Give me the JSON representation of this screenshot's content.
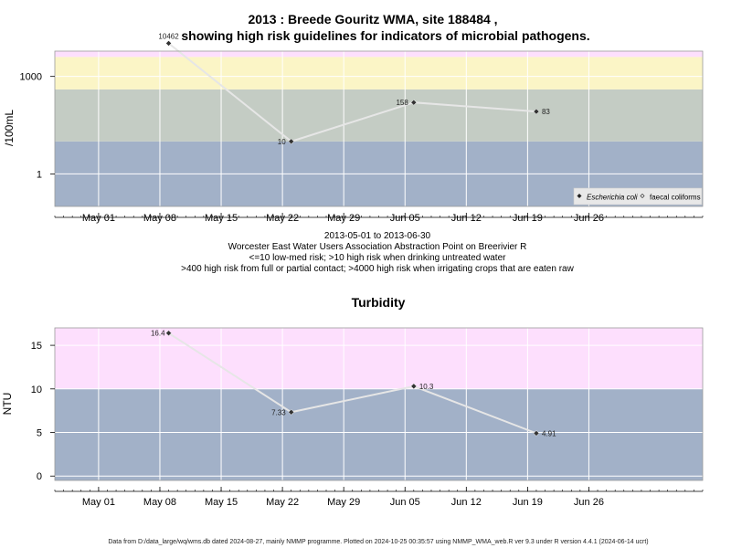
{
  "chart_data": [
    {
      "type": "line",
      "title_line1": "2013 : Breede Gouritz WMA, site 188484 ,",
      "title_line2": "showing high risk guidelines for indicators of microbial pathogens.",
      "ylabel": "/100mL",
      "yscale": "log",
      "ylim": [
        0.1,
        6000
      ],
      "y_ticks": [
        {
          "value": 1,
          "label": "1"
        },
        {
          "value": 1000,
          "label": "1000"
        }
      ],
      "caption": [
        "2013-05-01 to 2013-06-30",
        "Worcester East Water Users Association Abstraction Point on Breerivier R",
        "<=10 low-med risk; >10 high risk when drinking untreated water",
        ">400 high risk from full or partial contact; >4000 high risk when irrigating crops that are eaten raw"
      ],
      "bands": [
        {
          "from": 0.1,
          "to": 10,
          "color": "#a2b1c8"
        },
        {
          "from": 10,
          "to": 400,
          "color": "#c4ccc4"
        },
        {
          "from": 400,
          "to": 4000,
          "color": "#fbf5c6"
        },
        {
          "from": 4000,
          "to": 6000,
          "color": "#fddffd"
        }
      ],
      "series": [
        {
          "name": "Escherichia coli",
          "marker": "diamond-filled",
          "x": [
            "2013-05-09",
            "2013-05-23",
            "2013-06-06",
            "2013-06-20"
          ],
          "y": [
            10462,
            10,
            158,
            83
          ],
          "labels": [
            "10462",
            "10",
            "158",
            "83"
          ]
        }
      ],
      "legend": {
        "position": "bottom-right",
        "entries": [
          {
            "name": "Escherichia coli",
            "marker": "diamond-filled",
            "italic": true
          },
          {
            "name": "faecal coliforms",
            "marker": "diamond-open",
            "italic": false
          }
        ]
      }
    },
    {
      "type": "line",
      "title": "Turbidity",
      "ylabel": "NTU",
      "ylim": [
        -0.5,
        17
      ],
      "y_ticks": [
        {
          "value": 0,
          "label": "0"
        },
        {
          "value": 5,
          "label": "5"
        },
        {
          "value": 10,
          "label": "10"
        },
        {
          "value": 15,
          "label": "15"
        }
      ],
      "bands": [
        {
          "from": -0.5,
          "to": 10,
          "color": "#a2b1c8"
        },
        {
          "from": 10,
          "to": 17,
          "color": "#fddffd"
        }
      ],
      "series": [
        {
          "name": "Turbidity",
          "marker": "diamond-filled",
          "x": [
            "2013-05-09",
            "2013-05-23",
            "2013-06-06",
            "2013-06-20"
          ],
          "y": [
            16.4,
            7.33,
            10.3,
            4.91
          ],
          "labels": [
            "16.4",
            "7.33",
            "10.3",
            "4.91"
          ]
        }
      ]
    }
  ],
  "x_axis": {
    "xlim": [
      "2013-04-26",
      "2013-07-09"
    ],
    "ticks": [
      {
        "date": "2013-05-01",
        "label": "May 01"
      },
      {
        "date": "2013-05-08",
        "label": "May 08"
      },
      {
        "date": "2013-05-15",
        "label": "May 15"
      },
      {
        "date": "2013-05-22",
        "label": "May 22"
      },
      {
        "date": "2013-05-29",
        "label": "May 29"
      },
      {
        "date": "2013-06-05",
        "label": "Jun 05"
      },
      {
        "date": "2013-06-12",
        "label": "Jun 12"
      },
      {
        "date": "2013-06-19",
        "label": "Jun 19"
      },
      {
        "date": "2013-06-26",
        "label": "Jun 26"
      }
    ],
    "grid": true,
    "minor_ticks": "daily"
  },
  "footer": "Data from D:/data_large/wq/wms.db dated 2024-08-27, mainly NMMP programme. Plotted on 2024-10-25 00:35:57 using NMMP_WMA_web.R ver 9.3 under R version 4.4.1 (2024-06-14 ucrt)"
}
